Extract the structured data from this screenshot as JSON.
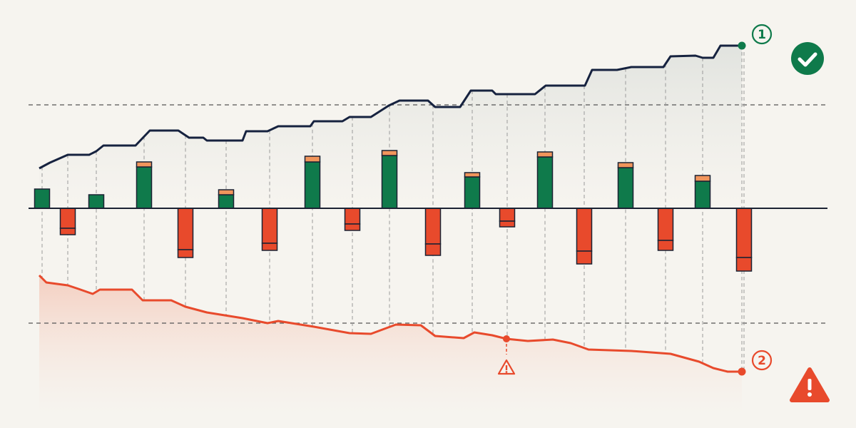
{
  "chart_data": {
    "type": "bar",
    "xlim": [
      0,
      1200
    ],
    "ylim": [
      -308,
      292
    ],
    "reference_lines": [
      145,
      -161
    ],
    "x": [
      59,
      95,
      135,
      202,
      260,
      317,
      378,
      438,
      494,
      546,
      607,
      662,
      711,
      764,
      819,
      877,
      933,
      985,
      1043
    ],
    "colors": {
      "positive": "#0f7a4b",
      "negative": "#e84a2c",
      "cap": "#f1955c",
      "edge": "#1b2233"
    },
    "series": [
      {
        "values": [
          27,
          -28,
          19,
          58,
          -58,
          19,
          -49,
          65,
          -22,
          74,
          -50,
          44,
          -18,
          72,
          -60,
          57,
          -45,
          38,
          -69
        ]
      },
      {
        "values": [
          0,
          -9,
          0,
          7,
          -11,
          7,
          -10,
          8,
          -9,
          7,
          -16,
          6,
          -8,
          7,
          -18,
          7,
          -14,
          8,
          -19
        ]
      }
    ],
    "lines": [
      {
        "color": "#16223f",
        "x": [
          55,
          70,
          95,
          125,
          135,
          145,
          190,
          210,
          250,
          265,
          285,
          290,
          340,
          345,
          375,
          390,
          435,
          440,
          480,
          490,
          520,
          545,
          560,
          600,
          610,
          645,
          660,
          690,
          695,
          750,
          765,
          820,
          830,
          865,
          885,
          930,
          940,
          975,
          985,
          1000,
          1010,
          1040
        ],
        "values": [
          56,
          64,
          75,
          75,
          80,
          88,
          88,
          109,
          109,
          99,
          99,
          95,
          95,
          108,
          108,
          115,
          115,
          122,
          122,
          128,
          128,
          144,
          151,
          151,
          142,
          142,
          165,
          165,
          160,
          160,
          172,
          172,
          194,
          194,
          198,
          198,
          213,
          214,
          211,
          211,
          228,
          228
        ]
      },
      {
        "color": "#e84a2c",
        "x": [
          55,
          65,
          95,
          110,
          130,
          140,
          185,
          200,
          240,
          260,
          290,
          340,
          375,
          390,
          440,
          490,
          520,
          555,
          590,
          610,
          650,
          665,
          690,
          710,
          740,
          775,
          800,
          825,
          885,
          940,
          980,
          1000,
          1020,
          1040
        ],
        "values": [
          -94,
          -104,
          -108,
          -113,
          -120,
          -114,
          -114,
          -129,
          -129,
          -138,
          -146,
          -154,
          -161,
          -158,
          -166,
          -175,
          -176,
          -163,
          -164,
          -179,
          -182,
          -174,
          -178,
          -183,
          -186,
          -184,
          -189,
          -198,
          -200,
          -204,
          -215,
          -224,
          -229,
          -229
        ]
      }
    ],
    "annotations": [
      "1",
      "2"
    ]
  }
}
